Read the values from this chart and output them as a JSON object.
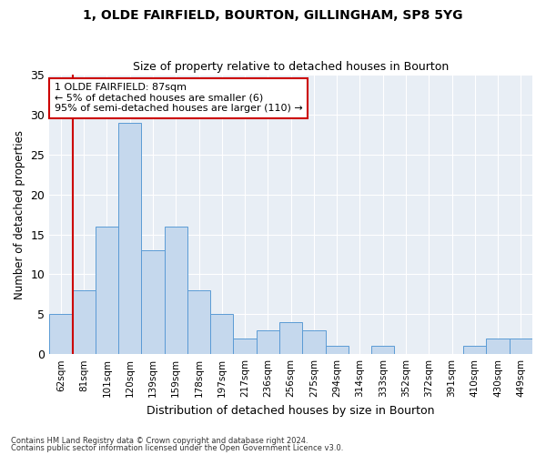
{
  "title1": "1, OLDE FAIRFIELD, BOURTON, GILLINGHAM, SP8 5YG",
  "title2": "Size of property relative to detached houses in Bourton",
  "xlabel": "Distribution of detached houses by size in Bourton",
  "ylabel": "Number of detached properties",
  "categories": [
    "62sqm",
    "81sqm",
    "101sqm",
    "120sqm",
    "139sqm",
    "159sqm",
    "178sqm",
    "197sqm",
    "217sqm",
    "236sqm",
    "256sqm",
    "275sqm",
    "294sqm",
    "314sqm",
    "333sqm",
    "352sqm",
    "372sqm",
    "391sqm",
    "410sqm",
    "430sqm",
    "449sqm"
  ],
  "values": [
    5,
    8,
    16,
    29,
    13,
    16,
    8,
    5,
    2,
    3,
    4,
    3,
    1,
    0,
    1,
    0,
    0,
    0,
    1,
    2,
    2
  ],
  "bar_color": "#c5d8ed",
  "bar_edge_color": "#5b9bd5",
  "vline_x": 0.5,
  "vline_color": "#cc0000",
  "annotation_text": "1 OLDE FAIRFIELD: 87sqm\n← 5% of detached houses are smaller (6)\n95% of semi-detached houses are larger (110) →",
  "annotation_box_color": "#ffffff",
  "annotation_box_edge": "#cc0000",
  "ylim": [
    0,
    35
  ],
  "yticks": [
    0,
    5,
    10,
    15,
    20,
    25,
    30,
    35
  ],
  "plot_bg_color": "#e8eef5",
  "fig_bg_color": "#ffffff",
  "grid_color": "#ffffff",
  "footer1": "Contains HM Land Registry data © Crown copyright and database right 2024.",
  "footer2": "Contains public sector information licensed under the Open Government Licence v3.0."
}
